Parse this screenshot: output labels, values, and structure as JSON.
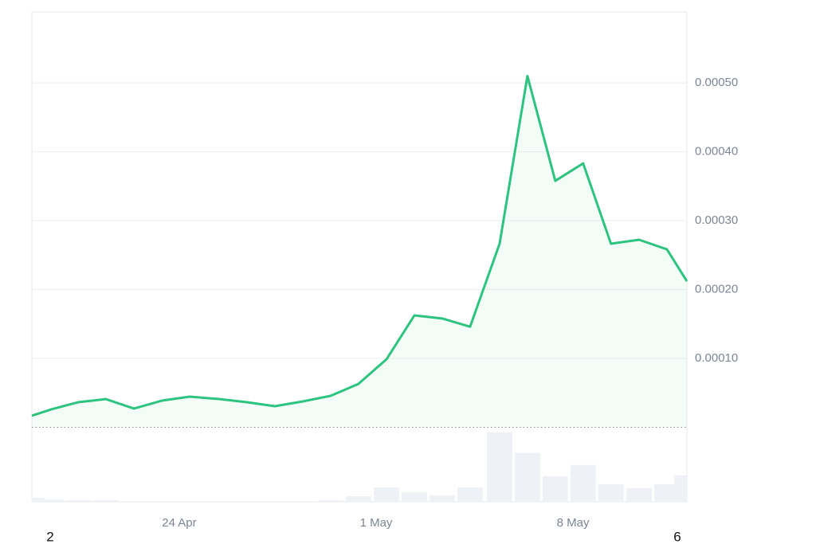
{
  "chart_data": {
    "type": "line",
    "x": [
      18.76,
      19.44,
      20.4,
      21.39,
      22.39,
      23.38,
      24.37,
      25.42,
      26.41,
      27.4,
      28.39,
      29.38,
      30.37,
      31.37,
      32.36,
      33.35,
      34.34,
      35.39,
      36.38,
      37.37,
      38.36,
      39.35,
      40.35,
      41.34,
      42.05
    ],
    "series": [
      {
        "color": "#2dc47f",
        "values": [
          1.68e-05,
          2.6e-05,
          3.64e-05,
          4.1e-05,
          2.72e-05,
          3.87e-05,
          4.45e-05,
          4.1e-05,
          3.64e-05,
          3.06e-05,
          3.76e-05,
          4.57e-05,
          6.3e-05,
          9.88e-05,
          0.0001624,
          0.000158,
          0.000146,
          0.0002665,
          0.00051,
          0.0003578,
          0.0003832,
          0.0002665,
          0.0002723,
          0.0002584,
          0.0002121
        ]
      }
    ],
    "volume": {
      "color": "#eef1f5",
      "values": [
        5,
        3,
        2,
        2,
        0,
        0,
        0,
        0,
        0,
        0,
        0,
        2,
        7,
        18,
        12,
        8,
        18,
        87,
        61,
        32,
        46,
        22,
        17,
        22,
        33
      ],
      "ylim": [
        0,
        93
      ]
    },
    "xlim": [
      18.76,
      42.05
    ],
    "xticks": [
      {
        "value": 24,
        "label": "24 Apr"
      },
      {
        "value": 31,
        "label": "1 May"
      },
      {
        "value": 38,
        "label": "8 May"
      }
    ],
    "ylim": [
      0,
      0.000603
    ],
    "yticks": [
      {
        "value": 0.0001,
        "label": "0.00010"
      },
      {
        "value": 0.0002,
        "label": "0.00020"
      },
      {
        "value": 0.0003,
        "label": "0.00030"
      },
      {
        "value": 0.0004,
        "label": "0.00040"
      },
      {
        "value": 0.0005,
        "label": "0.00050"
      }
    ],
    "grid": true,
    "edge_labels": [
      "2",
      "6"
    ]
  }
}
